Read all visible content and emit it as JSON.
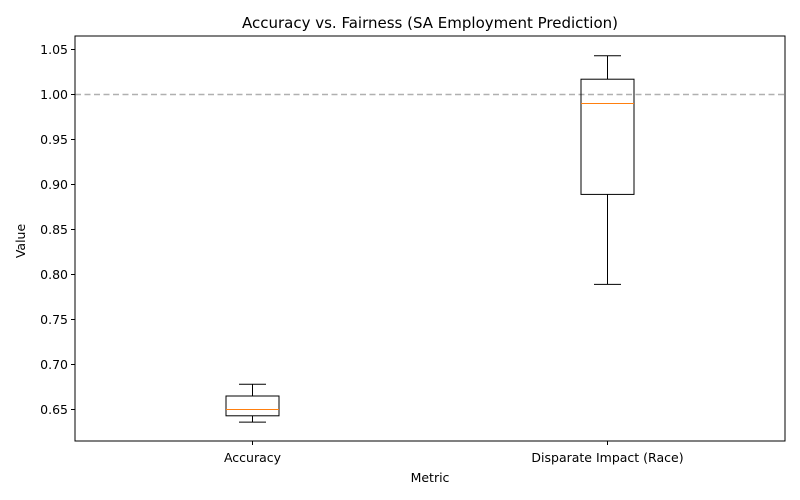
{
  "chart_data": {
    "type": "box",
    "title": "Accuracy vs. Fairness (SA Employment Prediction)",
    "xlabel": "Metric",
    "ylabel": "Value",
    "categories": [
      "Accuracy",
      "Disparate Impact (Race)"
    ],
    "boxes": [
      {
        "category": "Accuracy",
        "whisker_low": 0.636,
        "q1": 0.643,
        "median": 0.65,
        "q3": 0.665,
        "whisker_high": 0.678
      },
      {
        "category": "Disparate Impact (Race)",
        "whisker_low": 0.789,
        "q1": 0.889,
        "median": 0.99,
        "q3": 1.017,
        "whisker_high": 1.043
      }
    ],
    "reference_line": {
      "y": 1.0,
      "style": "dashed",
      "color": "#b0b0b0"
    },
    "ylim": [
      0.615,
      1.065
    ],
    "yticks": [
      "0.65",
      "0.70",
      "0.75",
      "0.80",
      "0.85",
      "0.90",
      "0.95",
      "1.00",
      "1.05"
    ],
    "grid": false,
    "colors": {
      "box": "#000000",
      "median": "#ff7f0e",
      "reference": "#b0b0b0"
    }
  }
}
